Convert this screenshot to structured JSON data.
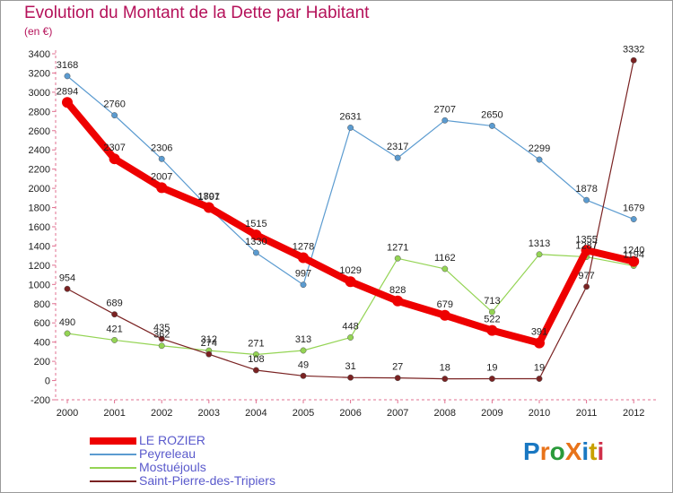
{
  "title": "Evolution du Montant de la Dette par Habitant",
  "unit": "(en €)",
  "logo": {
    "text": "ProXiti",
    "colors": [
      "#1a78c2",
      "#e8731a",
      "#2a9a3a",
      "#e8731a",
      "#1a78c2",
      "#c8a000",
      "#d0304a"
    ]
  },
  "chart_data": {
    "type": "line",
    "title": "Evolution du Montant de la Dette par Habitant",
    "ylabel": "(en €)",
    "x": [
      "2000",
      "2001",
      "2002",
      "2003",
      "2004",
      "2005",
      "2006",
      "2007",
      "2008",
      "2009",
      "2010",
      "2011",
      "2012"
    ],
    "ylim": [
      -200,
      3400
    ],
    "yticks": [
      -200,
      0,
      200,
      400,
      600,
      800,
      1000,
      1200,
      1400,
      1600,
      1800,
      2000,
      2200,
      2400,
      2600,
      2800,
      3000,
      3200,
      3400
    ],
    "grid": false,
    "legend": "bottom-left",
    "series": [
      {
        "name": "LE ROZIER",
        "color": "#ee0000",
        "values": [
          2894,
          2307,
          2007,
          1801,
          1515,
          1278,
          1029,
          828,
          679,
          522,
          391,
          1355,
          1240
        ],
        "labels": [
          "2894",
          "2307",
          "2007",
          "1801",
          "1515",
          "1278",
          "1029",
          "828",
          "679",
          "522",
          "391",
          "1355",
          "1240"
        ]
      },
      {
        "name": "Peyreleau",
        "color": "#5b9bd0",
        "values": [
          3168,
          2760,
          2306,
          1797,
          1330,
          997,
          2631,
          2317,
          2707,
          2650,
          2299,
          1878,
          1679
        ],
        "labels": [
          "3168",
          "2760",
          "2306",
          "1797",
          "1330",
          "997",
          "2631",
          "2317",
          "2707",
          "2650",
          "2299",
          "1878",
          "1679"
        ]
      },
      {
        "name": "Mostuéjouls",
        "color": "#94d454",
        "values": [
          490,
          421,
          362,
          312,
          271,
          313,
          448,
          1271,
          1162,
          713,
          1313,
          1287,
          1194
        ],
        "labels": [
          "490",
          "421",
          "362",
          "312",
          "271",
          "313",
          "448",
          "1271",
          "1162",
          "713",
          "1313",
          "1287",
          "1194"
        ]
      },
      {
        "name": "Saint-Pierre-des-Tripiers",
        "color": "#7a2222",
        "values": [
          954,
          689,
          435,
          274,
          108,
          49,
          31,
          27,
          18,
          19,
          19,
          977,
          3332
        ],
        "labels": [
          "954",
          "689",
          "435",
          "274",
          "108",
          "49",
          "31",
          "27",
          "18",
          "19",
          "19",
          "977",
          "3332"
        ]
      }
    ]
  }
}
